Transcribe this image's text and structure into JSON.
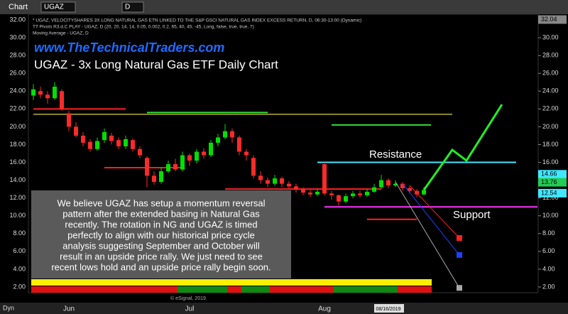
{
  "toolbar": {
    "window": "Chart",
    "symbol": "UGAZ",
    "interval": "D"
  },
  "info_lines": [
    "* UGAZ, VELOCITYSHARES 3X LONG NATURAL GAS ETN LINKED TO THE S&P GSCI NATURAL GAS INDEX EXCESS RETURN, D, 06:30-13:00 (Dynamic)",
    "TT Pivots R3.d.C PLAY - UGAZ, D (20, 20, 14, 14, 0.05, 0.002, 0.2, 65, 40, 45, -45, Long, false, true, true, 7)",
    "Moving Average - UGAZ, D"
  ],
  "website": "www.TheTechnicalTraders.com",
  "footer": {
    "mode": "Dyn",
    "credit": "© eSignal, 2019"
  },
  "chart_data": {
    "type": "candlestick",
    "title": "UGAZ - 3x Long Natural Gas ETF Daily Chart",
    "annotations": {
      "resistance": "Resistance",
      "support": "Support",
      "commentary": [
        "We believe UGAZ has setup a momentum reversal",
        "pattern after the extended basing in Natural Gas",
        "recently.  The rotation in NG and UGAZ is timed",
        "perfectly to align with our historical price cycle",
        "analysis suggesting September and October will",
        "result in an upside price rally.  We just need to see",
        "recent lows hold and an upside price rally begin soon."
      ]
    },
    "categories": [
      null,
      null,
      null,
      null,
      null,
      "Jun",
      null,
      null,
      null,
      null,
      null,
      null,
      null,
      null,
      null,
      null,
      null,
      null,
      null,
      null,
      null,
      null,
      "Jul",
      null,
      null,
      null,
      null,
      null,
      null,
      null,
      null,
      null,
      null,
      null,
      null,
      null,
      null,
      null,
      null,
      null,
      null,
      "Aug",
      null,
      null,
      null,
      null,
      null,
      null,
      null,
      null,
      "08/16/2019",
      null,
      null,
      null,
      null,
      null
    ],
    "open": [
      23.5,
      24,
      23.6,
      23.2,
      24,
      21.5,
      20,
      19,
      18.3,
      17.5,
      18.5,
      19,
      18.5,
      17.8,
      18.5,
      17.5,
      16.5,
      14.5,
      13.8,
      15,
      15.8,
      15.2,
      16.8,
      16.2,
      17.2,
      16.8,
      18.2,
      18.8,
      19.5,
      18.8,
      17.2,
      16.5,
      14.5,
      14,
      13.6,
      14.2,
      13.6,
      13.3,
      13,
      12.6,
      12.4,
      15.8,
      12.5,
      12.3,
      11.6,
      12.2,
      12.5,
      12.3,
      12.7,
      13.2,
      14,
      13.4,
      13.6,
      13.1,
      12.8,
      12.4
    ],
    "high": [
      24.8,
      24.5,
      24,
      25,
      24.2,
      21.8,
      20.5,
      19.4,
      18.6,
      18.8,
      19.8,
      19.3,
      18.8,
      19,
      18.7,
      17.8,
      16.7,
      15,
      15.4,
      16.2,
      16.4,
      17.2,
      17,
      17.5,
      17.6,
      18.5,
      19.2,
      20.3,
      19.8,
      19,
      17.5,
      16.8,
      15,
      14.3,
      14.6,
      14.4,
      13.9,
      13.6,
      13.2,
      12.9,
      13,
      16,
      12.8,
      12.4,
      12.5,
      12.8,
      12.8,
      13,
      13.6,
      14.6,
      14.2,
      14,
      13.8,
      13.3,
      13,
      13.2
    ],
    "low": [
      23,
      23.2,
      22.6,
      23,
      21.8,
      19.5,
      18.8,
      17.8,
      17.2,
      17.3,
      18.2,
      18,
      17.5,
      17.5,
      17.2,
      16.5,
      13.2,
      13.5,
      13.6,
      14.8,
      15,
      15,
      15.6,
      15.9,
      16.4,
      16.6,
      17.8,
      18.6,
      18.2,
      16.8,
      16.2,
      14.2,
      13.6,
      13.2,
      13.4,
      13.2,
      13,
      12.6,
      12.3,
      12.1,
      12.2,
      12.3,
      11.8,
      11.2,
      11.4,
      12,
      12,
      12.1,
      12.6,
      13,
      13.1,
      13.2,
      12.8,
      12.5,
      12.1,
      12.3
    ],
    "close": [
      24.2,
      23.6,
      23.2,
      24.5,
      22,
      20,
      19,
      18.2,
      17.5,
      18.4,
      19.4,
      18.4,
      17.8,
      18.6,
      17.5,
      16.8,
      14.5,
      13.8,
      15,
      15.8,
      15.2,
      16.8,
      16.2,
      17.2,
      16.8,
      18.2,
      18.8,
      19.5,
      18.8,
      17.2,
      16.8,
      14.5,
      14,
      13.6,
      14.2,
      13.6,
      13.3,
      13,
      12.6,
      12.4,
      12.7,
      12.5,
      12.3,
      11.6,
      12.2,
      12.5,
      12.3,
      12.7,
      13.2,
      14,
      13.4,
      13.6,
      13.1,
      12.8,
      12.4,
      12.9
    ],
    "up_color": "#00e000",
    "down_color": "#ff2a2a",
    "levels": [
      {
        "value": 22,
        "from": 0,
        "to": 13,
        "color": "#ff2020"
      },
      {
        "value": 21.6,
        "from": 16,
        "to": 33,
        "color": "#33dd33"
      },
      {
        "value": 21.4,
        "from": 0,
        "to": 59,
        "color": "#8a8a2a"
      },
      {
        "value": 20.2,
        "from": 42,
        "to": 56,
        "color": "#33dd33"
      },
      {
        "value": 15.4,
        "from": 10,
        "to": 21,
        "color": "#ff2020"
      },
      {
        "value": 13,
        "from": 27,
        "to": 49,
        "color": "#ff2020"
      },
      {
        "value": 16,
        "from": 40,
        "to": 68,
        "color": "#40e8ff"
      },
      {
        "value": 11,
        "from": 41,
        "to": 71,
        "color": "#ff30ff"
      },
      {
        "value": 9.6,
        "from": 47,
        "to": 54,
        "color": "#ff2020"
      }
    ],
    "projections": [
      {
        "color": "#22ee22",
        "x": [
          55,
          59,
          61,
          66
        ],
        "values": [
          12.9,
          17.4,
          16.2,
          22.5
        ]
      },
      {
        "color": "#ff2020",
        "x": [
          53,
          60
        ],
        "values": [
          13.4,
          7.5
        ]
      },
      {
        "color": "#2040ff",
        "x": [
          52,
          60
        ],
        "values": [
          13.6,
          5.6
        ]
      },
      {
        "color": "#aaaaaa",
        "x": [
          51,
          60
        ],
        "values": [
          13.8,
          1.9
        ]
      }
    ],
    "price_flags": [
      {
        "value": 32.04,
        "color": "#888888"
      },
      {
        "value": 14.66,
        "color": "#40e8ff"
      },
      {
        "value": 13.76,
        "color": "#22cc55"
      },
      {
        "value": 12.54,
        "color": "#40e8ff"
      }
    ],
    "ylim": [
      2,
      32
    ],
    "yticks": [
      {
        "value": 2,
        "label": "2.00"
      },
      {
        "value": 4,
        "label": "4.00"
      },
      {
        "value": 6,
        "label": "6.00"
      },
      {
        "value": 8,
        "label": "8.00"
      },
      {
        "value": 10,
        "label": "10.00"
      },
      {
        "value": 12,
        "label": "12.00"
      },
      {
        "value": 14,
        "label": "14.00"
      },
      {
        "value": 16,
        "label": "16.00"
      },
      {
        "value": 18,
        "label": "18.00"
      },
      {
        "value": 20,
        "label": "20.00"
      },
      {
        "value": 22,
        "label": "22.00"
      },
      {
        "value": 24,
        "label": "24.00"
      },
      {
        "value": 26,
        "label": "26.00"
      },
      {
        "value": 28,
        "label": "28.00"
      },
      {
        "value": 30,
        "label": "30.00"
      },
      {
        "value": 32,
        "label": "32.00"
      }
    ]
  }
}
